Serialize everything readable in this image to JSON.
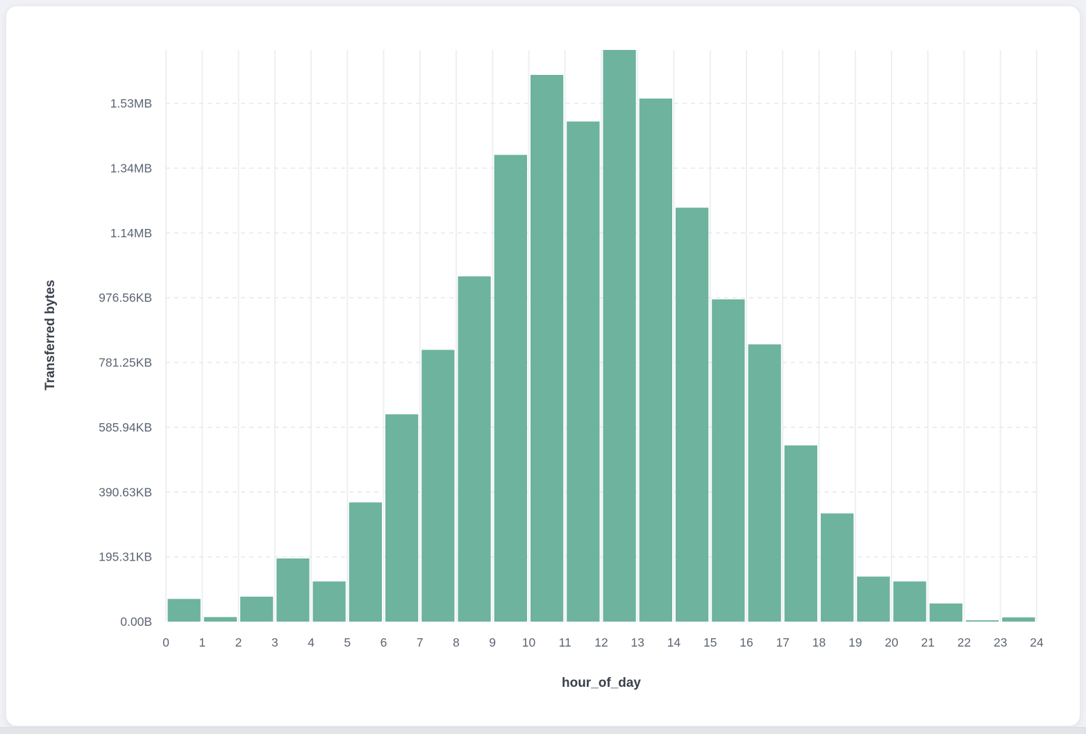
{
  "chart_data": {
    "type": "bar",
    "xlabel": "hour_of_day",
    "ylabel": "Transferred bytes",
    "categories_hour_bins": [
      0,
      1,
      2,
      3,
      4,
      5,
      6,
      7,
      8,
      9,
      10,
      11,
      12,
      13,
      14,
      15,
      16,
      17,
      18,
      19,
      20,
      21,
      22,
      23
    ],
    "values_bytes": [
      70000,
      14000,
      77000,
      195000,
      124000,
      368000,
      640000,
      839000,
      1066000,
      1441000,
      1688000,
      1544000,
      1765000,
      1615000,
      1278000,
      995000,
      856000,
      544000,
      334000,
      139000,
      124000,
      56000,
      4000,
      13000
    ],
    "x_tick_labels": [
      "0",
      "1",
      "2",
      "3",
      "4",
      "5",
      "6",
      "7",
      "8",
      "9",
      "10",
      "11",
      "12",
      "13",
      "14",
      "15",
      "16",
      "17",
      "18",
      "19",
      "20",
      "21",
      "22",
      "23",
      "24"
    ],
    "y_ticks": [
      {
        "value_bytes": 0,
        "label": "0.00B"
      },
      {
        "value_bytes": 200000,
        "label": "195.31KB"
      },
      {
        "value_bytes": 400000,
        "label": "390.63KB"
      },
      {
        "value_bytes": 600000,
        "label": "585.94KB"
      },
      {
        "value_bytes": 800000,
        "label": "781.25KB"
      },
      {
        "value_bytes": 1000000,
        "label": "976.56KB"
      },
      {
        "value_bytes": 1200000,
        "label": "1.14MB"
      },
      {
        "value_bytes": 1400000,
        "label": "1.34MB"
      },
      {
        "value_bytes": 1600000,
        "label": "1.53MB"
      }
    ],
    "ylim_bytes": [
      0,
      1765000
    ],
    "grid": true,
    "colors": {
      "bar": "#6db39d",
      "vertical_gridline": "#edeff3",
      "horizontal_gridline": "#e5e8ee",
      "tick_text": "#5d6573",
      "axis_title_text": "#3a404c"
    }
  }
}
